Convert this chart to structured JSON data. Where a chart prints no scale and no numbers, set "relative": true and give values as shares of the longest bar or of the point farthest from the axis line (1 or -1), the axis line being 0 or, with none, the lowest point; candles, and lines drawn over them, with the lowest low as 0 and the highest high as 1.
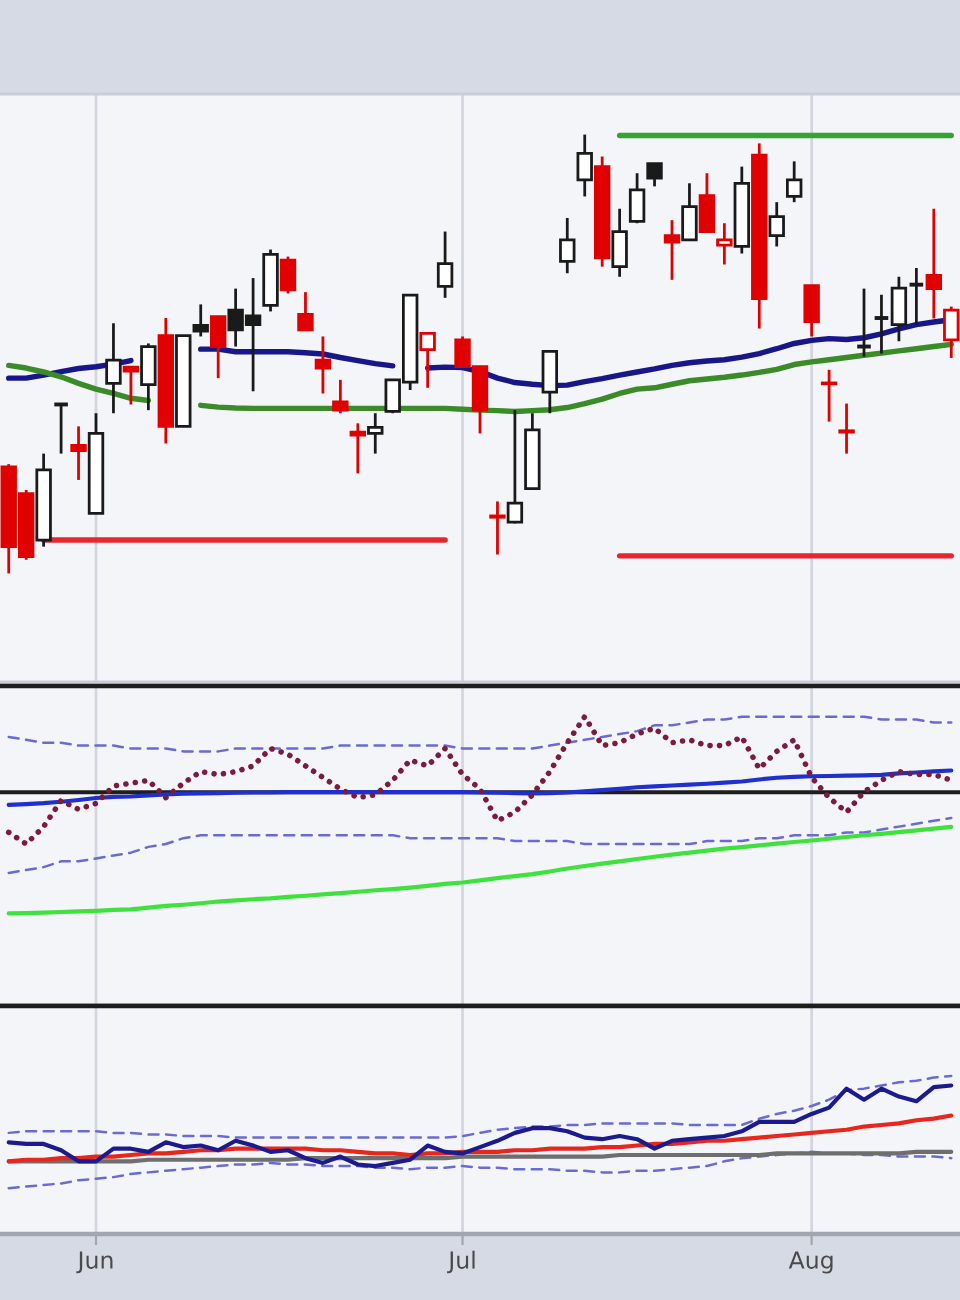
{
  "chart_data": [
    {
      "type": "candlestick",
      "relative": true,
      "categories": [
        null,
        null,
        null,
        null,
        null,
        null,
        null,
        null,
        null,
        null,
        null,
        null,
        null,
        null,
        null,
        null,
        null,
        null,
        null,
        null,
        null,
        null,
        null,
        null,
        null,
        null,
        null,
        null,
        null,
        null,
        null,
        null,
        null,
        null,
        null,
        null,
        null,
        null,
        null,
        null,
        null,
        null,
        null,
        null,
        null,
        null,
        null,
        null,
        null,
        null,
        null,
        null,
        null,
        null,
        null
      ],
      "ohlc": [
        [
          0.243,
          0.249,
          0.0,
          0.061
        ],
        [
          0.182,
          0.19,
          0.031,
          0.038
        ],
        [
          0.076,
          0.273,
          0.061,
          0.236
        ],
        [
          0.385,
          0.385,
          0.273,
          0.385
        ],
        [
          0.292,
          0.335,
          0.213,
          0.28
        ],
        [
          0.137,
          0.365,
          0.137,
          0.319
        ],
        [
          0.433,
          0.57,
          0.365,
          0.486
        ],
        [
          0.47,
          0.471,
          0.385,
          0.461
        ],
        [
          0.43,
          0.524,
          0.372,
          0.517
        ],
        [
          0.542,
          0.582,
          0.296,
          0.335
        ],
        [
          0.335,
          0.542,
          0.335,
          0.542
        ],
        [
          0.565,
          0.613,
          0.54,
          0.552
        ],
        [
          0.585,
          0.585,
          0.445,
          0.517
        ],
        [
          0.6,
          0.649,
          0.517,
          0.555
        ],
        [
          0.587,
          0.673,
          0.415,
          0.567
        ],
        [
          0.611,
          0.738,
          0.597,
          0.727
        ],
        [
          0.714,
          0.722,
          0.638,
          0.646
        ],
        [
          0.59,
          0.641,
          0.555,
          0.555
        ],
        [
          0.486,
          0.54,
          0.41,
          0.468
        ],
        [
          0.391,
          0.441,
          0.365,
          0.372
        ],
        [
          0.322,
          0.342,
          0.228,
          0.315
        ],
        [
          0.319,
          0.365,
          0.273,
          0.333
        ],
        [
          0.369,
          0.441,
          0.365,
          0.441
        ],
        [
          0.436,
          0.634,
          0.418,
          0.634
        ],
        [
          0.51,
          0.547,
          0.423,
          0.547
        ],
        [
          0.654,
          0.779,
          0.628,
          0.706
        ],
        [
          0.532,
          0.54,
          0.468,
          0.471
        ],
        [
          0.471,
          0.471,
          0.319,
          0.372
        ],
        [
          0.131,
          0.164,
          0.043,
          0.128
        ],
        [
          0.117,
          0.372,
          0.114,
          0.16
        ],
        [
          0.193,
          0.365,
          0.19,
          0.327
        ],
        [
          0.413,
          0.506,
          0.365,
          0.506
        ],
        [
          0.711,
          0.81,
          0.684,
          0.76
        ],
        [
          0.897,
          1.0,
          0.859,
          0.957
        ],
        [
          0.927,
          0.95,
          0.699,
          0.719
        ],
        [
          0.699,
          0.831,
          0.676,
          0.779
        ],
        [
          0.802,
          0.912,
          0.798,
          0.874
        ],
        [
          0.934,
          0.934,
          0.882,
          0.901
        ],
        [
          0.77,
          0.805,
          0.669,
          0.755
        ],
        [
          0.76,
          0.889,
          0.76,
          0.836
        ],
        [
          0.861,
          0.912,
          0.778,
          0.779
        ],
        [
          0.748,
          0.798,
          0.704,
          0.76
        ],
        [
          0.745,
          0.927,
          0.729,
          0.889
        ],
        [
          0.953,
          0.98,
          0.558,
          0.626
        ],
        [
          0.77,
          0.846,
          0.745,
          0.813
        ],
        [
          0.859,
          0.939,
          0.846,
          0.897
        ],
        [
          0.656,
          0.656,
          0.54,
          0.574
        ],
        [
          0.434,
          0.464,
          0.346,
          0.432
        ],
        [
          0.325,
          0.387,
          0.273,
          0.322
        ],
        [
          0.517,
          0.649,
          0.494,
          0.517
        ],
        [
          0.582,
          0.635,
          0.501,
          0.582
        ],
        [
          0.567,
          0.676,
          0.529,
          0.65
        ],
        [
          0.658,
          0.696,
          0.567,
          0.658
        ],
        [
          0.679,
          0.831,
          0.581,
          0.649
        ],
        [
          0.532,
          0.608,
          0.491,
          0.6
        ]
      ],
      "colors": [
        "#e00000",
        "#e00000",
        "#1a1a1a",
        "#1a1a1a",
        "#e00000",
        "#1a1a1a",
        "#1a1a1a",
        "#e00000",
        "#1a1a1a",
        "#e00000",
        "#1a1a1a",
        "#1a1a1a",
        "#e00000",
        "#1a1a1a",
        "#1a1a1a",
        "#1a1a1a",
        "#e00000",
        "#e00000",
        "#e00000",
        "#e00000",
        "#e00000",
        "#1a1a1a",
        "#1a1a1a",
        "#1a1a1a",
        "#e00000",
        "#1a1a1a",
        "#e00000",
        "#e00000",
        "#e00000",
        "#1a1a1a",
        "#1a1a1a",
        "#1a1a1a",
        "#1a1a1a",
        "#1a1a1a",
        "#e00000",
        "#1a1a1a",
        "#1a1a1a",
        "#1a1a1a",
        "#e00000",
        "#1a1a1a",
        "#e00000",
        "#e00000",
        "#1a1a1a",
        "#e00000",
        "#1a1a1a",
        "#1a1a1a",
        "#e00000",
        "#e00000",
        "#e00000",
        "#1a1a1a",
        "#1a1a1a",
        "#1a1a1a",
        "#1a1a1a",
        "#e00000",
        "#e00000"
      ],
      "tick_labels": false,
      "grid": "x",
      "series": [
        {
          "type": "line",
          "color": "#17178a",
          "values": [
            0.445,
            0.445,
            0.452,
            0.46,
            0.467,
            0.471,
            0.477,
            0.485,
            null,
            null,
            null,
            0.511,
            0.511,
            0.505,
            0.505,
            0.505,
            0.505,
            0.503,
            0.5,
            0.492,
            0.485,
            0.478,
            0.473,
            null,
            0.468,
            0.47,
            0.469,
            0.46,
            0.445,
            0.435,
            0.431,
            0.428,
            0.429,
            0.437,
            0.444,
            0.452,
            0.459,
            0.466,
            0.474,
            0.48,
            0.484,
            0.487,
            0.493,
            0.501,
            0.512,
            0.524,
            0.531,
            0.535,
            0.533,
            0.537,
            0.546,
            0.557,
            0.567,
            0.573,
            0.578
          ]
        },
        {
          "type": "line",
          "color": "#3b8b28",
          "values": [
            0.474,
            0.468,
            0.459,
            0.448,
            0.433,
            0.42,
            0.41,
            0.399,
            0.394,
            null,
            null,
            0.383,
            0.379,
            0.377,
            0.376,
            0.376,
            0.376,
            0.376,
            0.376,
            0.376,
            0.376,
            0.376,
            0.376,
            0.376,
            0.376,
            0.376,
            0.374,
            0.372,
            0.371,
            0.369,
            0.371,
            0.373,
            0.378,
            0.387,
            0.397,
            0.41,
            0.42,
            0.423,
            0.431,
            0.439,
            0.443,
            0.447,
            0.452,
            0.458,
            0.465,
            0.476,
            0.482,
            0.487,
            0.492,
            0.497,
            0.502,
            0.507,
            0.512,
            0.517,
            0.522
          ]
        },
        {
          "type": "line",
          "color": "#e8262b",
          "values": [
            null,
            null,
            0.076,
            0.076,
            0.076,
            0.076,
            0.076,
            0.076,
            0.076,
            0.076,
            0.076,
            0.076,
            0.076,
            0.076,
            0.076,
            0.076,
            0.076,
            0.076,
            0.076,
            0.076,
            0.076,
            0.076,
            0.076,
            0.076,
            0.076,
            0.076,
            null,
            null,
            null,
            null,
            null,
            null,
            null,
            null,
            null,
            null,
            null,
            null,
            null,
            null,
            null,
            null,
            null,
            null,
            null,
            null,
            null,
            null,
            null,
            null,
            null,
            null,
            null,
            null,
            null
          ]
        },
        {
          "type": "line",
          "color": "#e8262b",
          "values": [
            null,
            null,
            null,
            null,
            null,
            null,
            null,
            null,
            null,
            null,
            null,
            null,
            null,
            null,
            null,
            null,
            null,
            null,
            null,
            null,
            null,
            null,
            null,
            null,
            null,
            null,
            null,
            null,
            null,
            null,
            null,
            null,
            null,
            null,
            null,
            0.04,
            0.04,
            0.04,
            0.04,
            0.04,
            0.04,
            0.04,
            0.04,
            0.04,
            0.04,
            0.04,
            0.04,
            0.04,
            0.04,
            0.04,
            0.04,
            0.04,
            0.04,
            0.04,
            0.04
          ]
        },
        {
          "type": "line",
          "color": "#33a532",
          "values": [
            null,
            null,
            null,
            null,
            null,
            null,
            null,
            null,
            null,
            null,
            null,
            null,
            null,
            null,
            null,
            null,
            null,
            null,
            null,
            null,
            null,
            null,
            null,
            null,
            null,
            null,
            null,
            null,
            null,
            null,
            null,
            null,
            null,
            null,
            null,
            0.998,
            0.998,
            0.998,
            0.998,
            0.998,
            0.998,
            0.998,
            0.998,
            0.998,
            0.998,
            0.998,
            0.998,
            0.998,
            0.998,
            0.998,
            0.998,
            0.998,
            0.998,
            0.998,
            0.998
          ]
        }
      ]
    },
    {
      "type": "line",
      "relative": true,
      "categories": [
        null,
        null,
        null,
        null,
        null,
        null,
        null,
        null,
        null,
        null,
        null,
        null,
        null,
        null,
        null,
        null,
        null,
        null,
        null,
        null,
        null,
        null,
        null,
        null,
        null,
        null,
        null,
        null,
        null,
        null,
        null,
        null,
        null,
        null,
        null,
        null,
        null,
        null,
        null,
        null,
        null,
        null,
        null,
        null,
        null,
        null,
        null,
        null,
        null,
        null,
        null,
        null,
        null,
        null,
        null
      ],
      "tick_labels": false,
      "grid": "x",
      "ref_lines": [
        {
          "axis": "y",
          "value": 0.739,
          "color": "#1e1e1e"
        }
      ],
      "series": [
        {
          "color": "#6a6ad6",
          "line_style": "dashed",
          "values": [
            0.93,
            0.92,
            0.91,
            0.91,
            0.9,
            0.9,
            0.9,
            0.89,
            0.89,
            0.89,
            0.88,
            0.88,
            0.88,
            0.89,
            0.89,
            0.89,
            0.89,
            0.89,
            0.89,
            0.9,
            0.9,
            0.9,
            0.9,
            0.9,
            0.9,
            0.9,
            0.89,
            0.89,
            0.89,
            0.89,
            0.89,
            0.9,
            0.91,
            0.92,
            0.93,
            0.94,
            0.95,
            0.97,
            0.97,
            0.98,
            0.99,
            0.99,
            1.0,
            1.0,
            1.0,
            1.0,
            1.0,
            1.0,
            1.0,
            1.0,
            0.99,
            0.99,
            0.99,
            0.98,
            0.98
          ]
        },
        {
          "color": "#6a6ad6",
          "line_style": "dashed",
          "values": [
            0.46,
            0.47,
            0.48,
            0.5,
            0.5,
            0.51,
            0.52,
            0.53,
            0.55,
            0.56,
            0.58,
            0.59,
            0.59,
            0.59,
            0.59,
            0.59,
            0.59,
            0.59,
            0.59,
            0.59,
            0.59,
            0.59,
            0.59,
            0.58,
            0.58,
            0.58,
            0.58,
            0.58,
            0.58,
            0.57,
            0.57,
            0.57,
            0.57,
            0.56,
            0.56,
            0.56,
            0.56,
            0.56,
            0.56,
            0.56,
            0.57,
            0.57,
            0.57,
            0.58,
            0.58,
            0.59,
            0.59,
            0.59,
            0.6,
            0.6,
            0.61,
            0.62,
            0.63,
            0.64,
            0.65
          ]
        },
        {
          "color": "#3de23d",
          "values": [
            0.32,
            0.321,
            0.323,
            0.325,
            0.327,
            0.329,
            0.332,
            0.334,
            0.34,
            0.346,
            0.35,
            0.355,
            0.361,
            0.365,
            0.369,
            0.372,
            0.377,
            0.381,
            0.386,
            0.39,
            0.395,
            0.4,
            0.404,
            0.409,
            0.415,
            0.422,
            0.427,
            0.434,
            0.442,
            0.449,
            0.456,
            0.465,
            0.475,
            0.484,
            0.492,
            0.5,
            0.508,
            0.516,
            0.523,
            0.53,
            0.537,
            0.544,
            0.549,
            0.555,
            0.561,
            0.567,
            0.572,
            0.578,
            0.584,
            0.59,
            0.595,
            0.601,
            0.607,
            0.613,
            0.619
          ]
        },
        {
          "color": "#1f2fd0",
          "values": [
            0.695,
            0.698,
            0.701,
            0.706,
            0.712,
            0.719,
            0.723,
            0.724,
            0.728,
            0.731,
            0.734,
            0.735,
            0.736,
            0.737,
            0.738,
            0.738,
            0.739,
            0.739,
            0.739,
            0.739,
            0.739,
            0.739,
            0.739,
            0.739,
            0.739,
            0.739,
            0.739,
            0.738,
            0.737,
            0.736,
            0.735,
            0.736,
            0.738,
            0.742,
            0.746,
            0.751,
            0.756,
            0.759,
            0.762,
            0.765,
            0.768,
            0.772,
            0.776,
            0.783,
            0.789,
            0.792,
            0.794,
            0.795,
            0.796,
            0.797,
            0.799,
            0.804,
            0.807,
            0.811,
            0.814
          ]
        },
        {
          "color": "#7b1c3c",
          "line_style": "dotted",
          "values": [
            0.6,
            0.56,
            0.62,
            0.71,
            0.68,
            0.7,
            0.76,
            0.77,
            0.78,
            0.72,
            0.77,
            0.81,
            0.8,
            0.81,
            0.83,
            0.89,
            0.87,
            0.83,
            0.79,
            0.75,
            0.72,
            0.73,
            0.78,
            0.85,
            0.83,
            0.89,
            0.8,
            0.75,
            0.64,
            0.67,
            0.73,
            0.81,
            0.91,
            1.0,
            0.9,
            0.91,
            0.94,
            0.96,
            0.91,
            0.92,
            0.9,
            0.9,
            0.93,
            0.82,
            0.88,
            0.92,
            0.79,
            0.72,
            0.67,
            0.74,
            0.78,
            0.81,
            0.8,
            0.8,
            0.78
          ]
        }
      ]
    },
    {
      "type": "line",
      "relative": true,
      "categories": [
        null,
        null,
        null,
        null,
        null,
        "Jun",
        null,
        null,
        null,
        null,
        null,
        null,
        null,
        null,
        null,
        null,
        null,
        null,
        null,
        null,
        null,
        null,
        null,
        null,
        null,
        null,
        "Jul",
        null,
        null,
        null,
        null,
        null,
        null,
        null,
        null,
        null,
        null,
        null,
        null,
        null,
        null,
        null,
        null,
        null,
        null,
        null,
        "Aug",
        null,
        null,
        null,
        null,
        null,
        null,
        null,
        null
      ],
      "tick_labels": "x",
      "grid": "x",
      "series": [
        {
          "color": "#6a6ad6",
          "line_style": "dashed",
          "values": [
            0.64,
            0.65,
            0.65,
            0.65,
            0.65,
            0.65,
            0.64,
            0.64,
            0.63,
            0.63,
            0.62,
            0.62,
            0.62,
            0.61,
            0.61,
            0.61,
            0.61,
            0.61,
            0.61,
            0.61,
            0.61,
            0.61,
            0.61,
            0.61,
            0.61,
            0.61,
            0.62,
            0.64,
            0.66,
            0.67,
            0.68,
            0.68,
            0.69,
            0.69,
            0.7,
            0.7,
            0.7,
            0.7,
            0.7,
            0.69,
            0.69,
            0.69,
            0.69,
            0.73,
            0.76,
            0.78,
            0.81,
            0.85,
            0.91,
            0.92,
            0.94,
            0.96,
            0.97,
            0.99,
            1.0
          ]
        },
        {
          "color": "#6a6ad6",
          "line_style": "dashed",
          "values": [
            0.29,
            0.3,
            0.31,
            0.32,
            0.34,
            0.35,
            0.36,
            0.38,
            0.39,
            0.4,
            0.41,
            0.42,
            0.43,
            0.44,
            0.44,
            0.45,
            0.44,
            0.44,
            0.43,
            0.43,
            0.43,
            0.42,
            0.42,
            0.41,
            0.42,
            0.42,
            0.43,
            0.42,
            0.42,
            0.41,
            0.41,
            0.41,
            0.4,
            0.4,
            0.39,
            0.39,
            0.4,
            0.4,
            0.41,
            0.42,
            0.43,
            0.46,
            0.48,
            0.49,
            0.5,
            0.51,
            0.52,
            0.51,
            0.51,
            0.5,
            0.5,
            0.49,
            0.49,
            0.49,
            0.48
          ]
        },
        {
          "color": "#6e6e6e",
          "values": [
            0.46,
            0.46,
            0.46,
            0.46,
            0.46,
            0.46,
            0.46,
            0.46,
            0.47,
            0.47,
            0.47,
            0.47,
            0.47,
            0.47,
            0.47,
            0.47,
            0.47,
            0.48,
            0.48,
            0.48,
            0.48,
            0.48,
            0.48,
            0.48,
            0.48,
            0.48,
            0.49,
            0.49,
            0.49,
            0.49,
            0.49,
            0.49,
            0.49,
            0.49,
            0.49,
            0.5,
            0.5,
            0.5,
            0.5,
            0.5,
            0.5,
            0.5,
            0.5,
            0.5,
            0.51,
            0.51,
            0.51,
            0.51,
            0.51,
            0.51,
            0.51,
            0.51,
            0.52,
            0.52,
            0.52
          ]
        },
        {
          "color": "#e8261c",
          "values": [
            0.46,
            0.47,
            0.47,
            0.48,
            0.48,
            0.49,
            0.49,
            0.5,
            0.51,
            0.51,
            0.52,
            0.53,
            0.53,
            0.54,
            0.54,
            0.54,
            0.54,
            0.54,
            0.53,
            0.53,
            0.52,
            0.51,
            0.51,
            0.5,
            0.51,
            0.51,
            0.52,
            0.52,
            0.52,
            0.53,
            0.53,
            0.54,
            0.54,
            0.54,
            0.55,
            0.55,
            0.56,
            0.57,
            0.57,
            0.58,
            0.59,
            0.59,
            0.6,
            0.61,
            0.62,
            0.63,
            0.64,
            0.65,
            0.66,
            0.68,
            0.69,
            0.7,
            0.72,
            0.73,
            0.75
          ]
        },
        {
          "color": "#1b1b8f",
          "values": [
            0.58,
            0.57,
            0.57,
            0.53,
            0.46,
            0.46,
            0.54,
            0.54,
            0.52,
            0.58,
            0.55,
            0.56,
            0.53,
            0.59,
            0.56,
            0.52,
            0.53,
            0.48,
            0.45,
            0.49,
            0.44,
            0.43,
            0.45,
            0.47,
            0.56,
            0.52,
            0.51,
            0.55,
            0.59,
            0.64,
            0.67,
            0.67,
            0.65,
            0.61,
            0.6,
            0.62,
            0.6,
            0.54,
            0.59,
            0.6,
            0.61,
            0.62,
            0.65,
            0.71,
            0.71,
            0.71,
            0.76,
            0.8,
            0.92,
            0.85,
            0.92,
            0.87,
            0.84,
            0.93,
            0.94
          ]
        }
      ]
    }
  ]
}
